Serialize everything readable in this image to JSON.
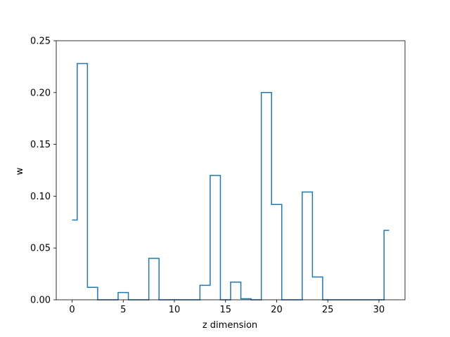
{
  "chart_data": {
    "type": "line",
    "drawstyle": "steps-mid",
    "title": "",
    "xlabel": "z dimension",
    "ylabel": "w",
    "xlim": [
      -1.55,
      32.55
    ],
    "ylim": [
      0,
      0.25
    ],
    "xticks": [
      0,
      5,
      10,
      15,
      20,
      25,
      30
    ],
    "xtick_labels": [
      "0",
      "5",
      "10",
      "15",
      "20",
      "25",
      "30"
    ],
    "yticks": [
      0.0,
      0.05,
      0.1,
      0.15,
      0.2,
      0.25
    ],
    "ytick_labels": [
      "0.00",
      "0.05",
      "0.10",
      "0.15",
      "0.20",
      "0.25"
    ],
    "grid": false,
    "legend": "none",
    "color": "#1f77b4",
    "x": [
      0,
      1,
      2,
      3,
      4,
      5,
      6,
      7,
      8,
      9,
      10,
      11,
      12,
      13,
      14,
      15,
      16,
      17,
      18,
      19,
      20,
      21,
      22,
      23,
      24,
      25,
      26,
      27,
      28,
      29,
      30,
      31
    ],
    "y": [
      0.077,
      0.228,
      0.012,
      0.0,
      0.0,
      0.007,
      0.0,
      0.0,
      0.04,
      0.0,
      0.0,
      0.0,
      0.0,
      0.014,
      0.12,
      0.0,
      0.017,
      0.001,
      0.0,
      0.2,
      0.092,
      0.0,
      0.0,
      0.104,
      0.022,
      0.0,
      0.0,
      0.0,
      0.0,
      0.0,
      0.0,
      0.067
    ]
  }
}
